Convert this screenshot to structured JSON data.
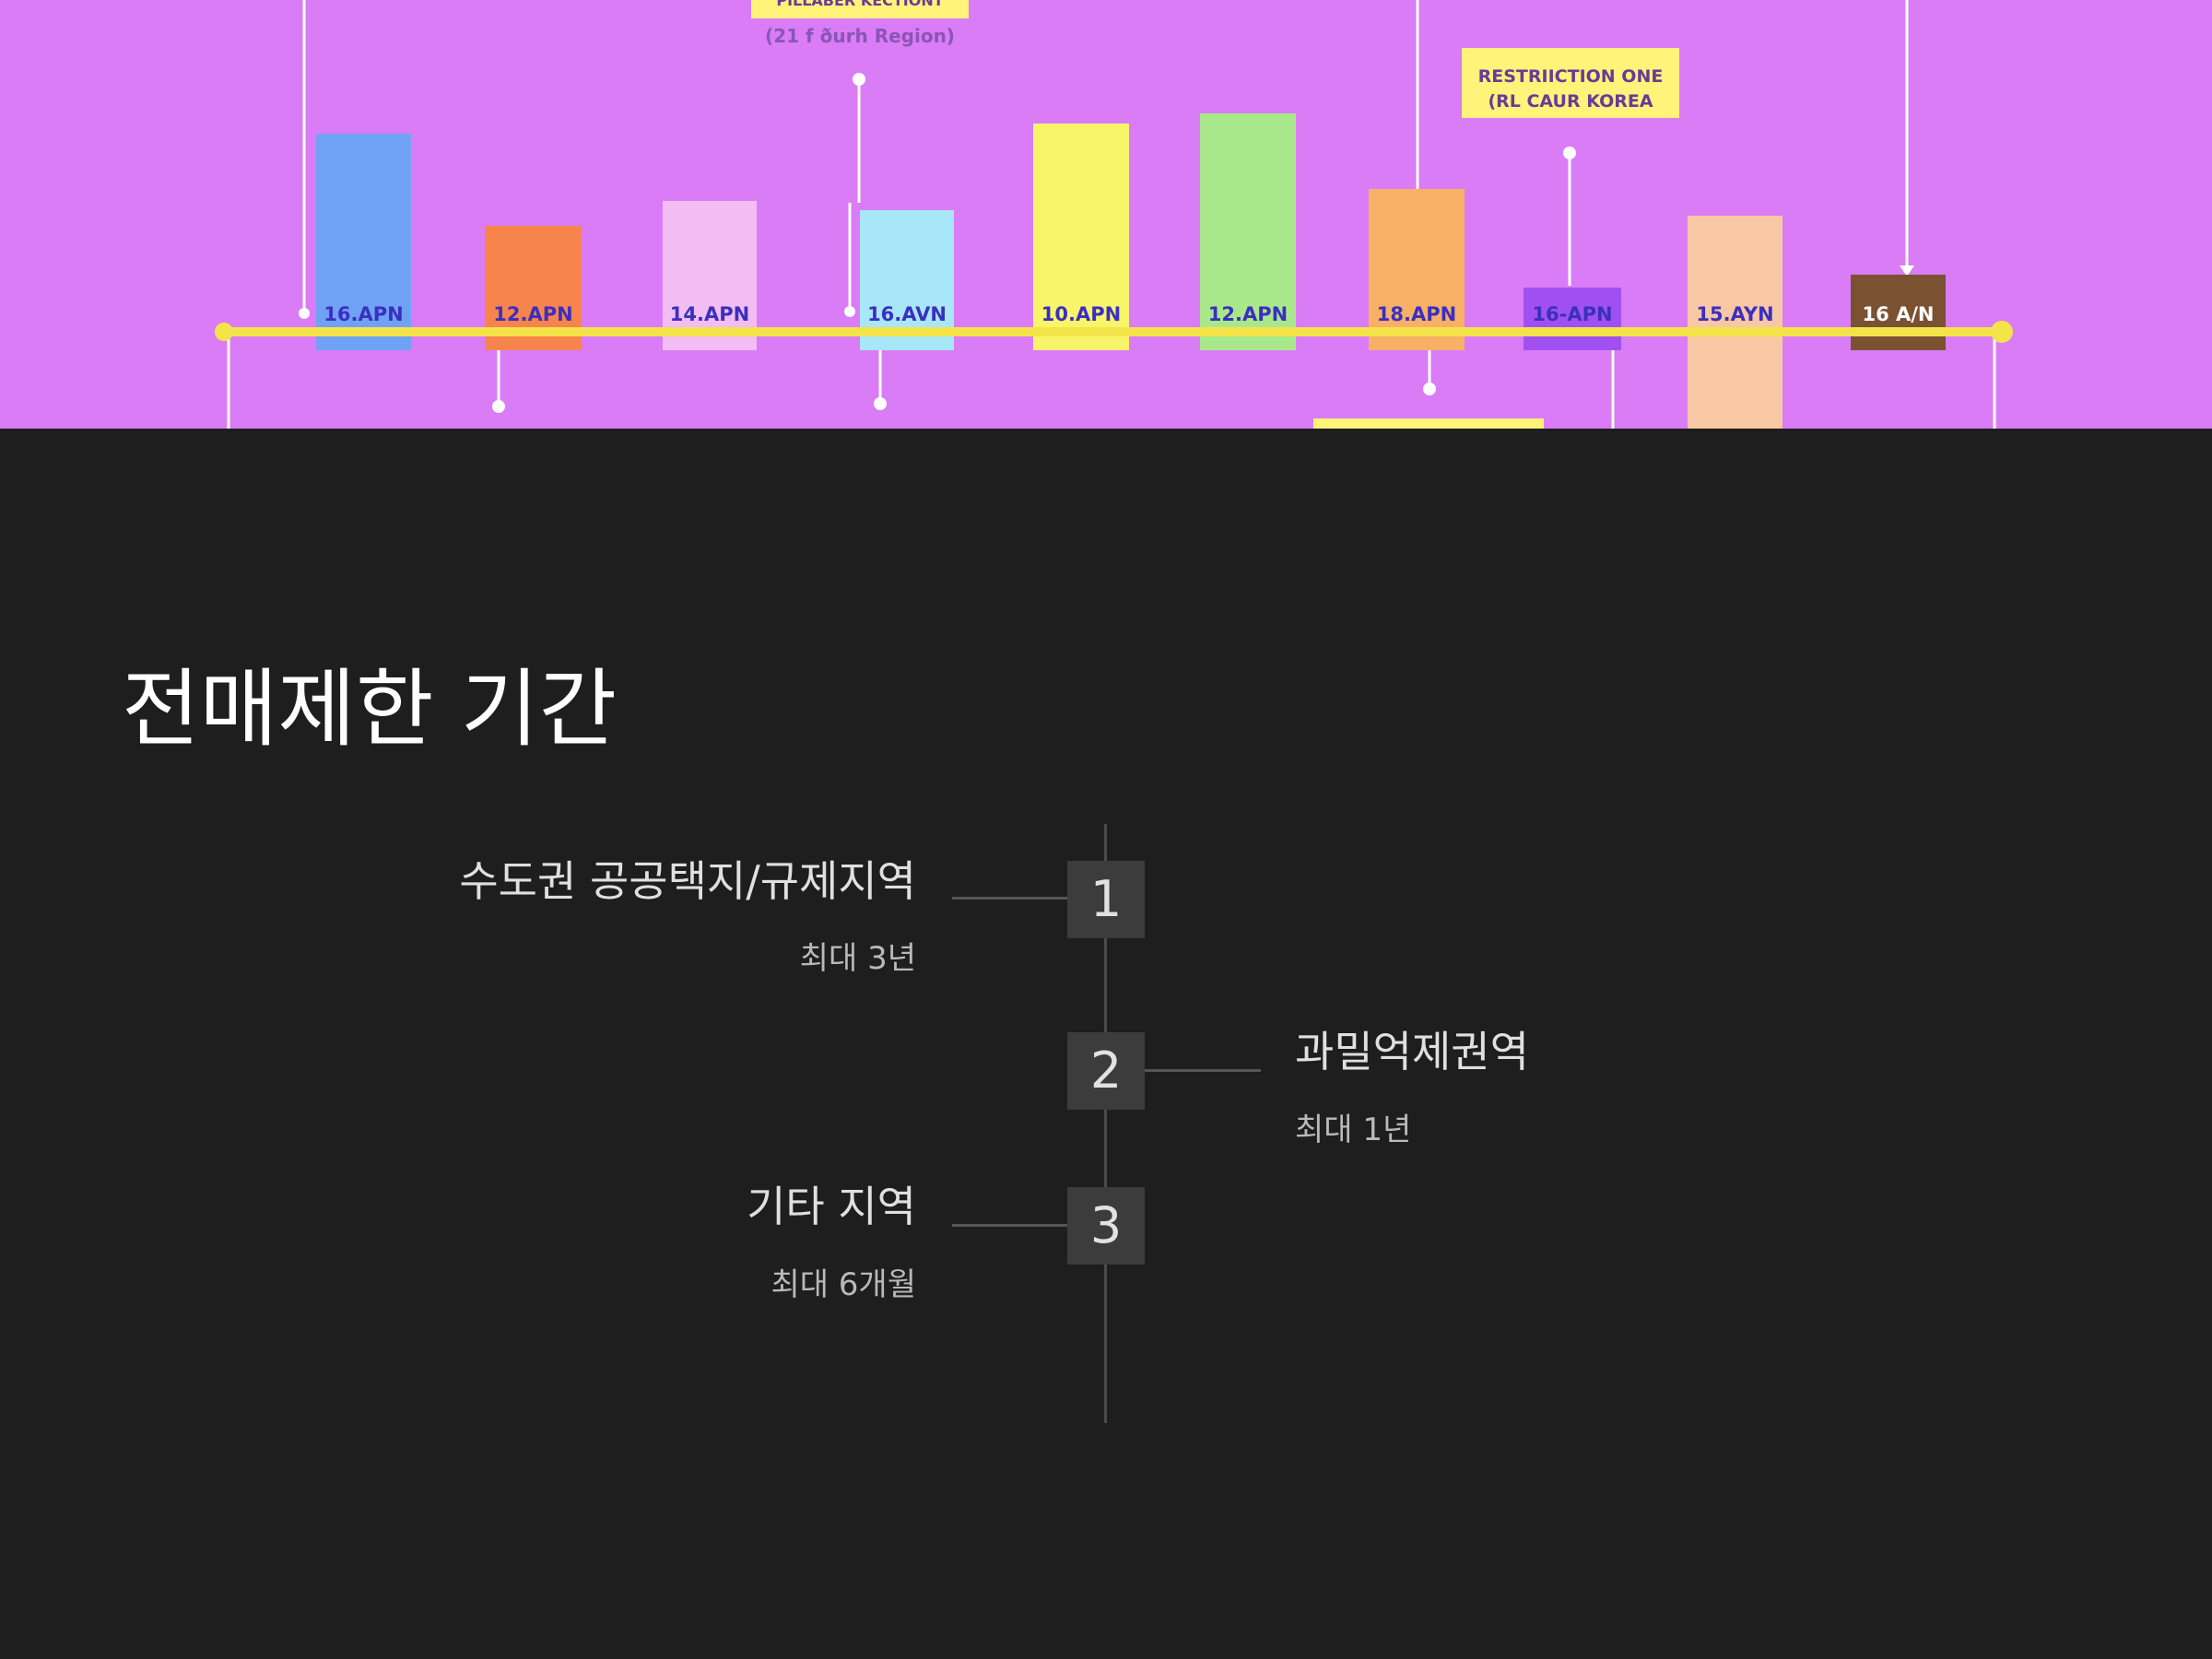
{
  "hero": {
    "callouts": [
      "PILLABER KECTIONT",
      "(21 f ðurh Region)",
      "RESTRIICTION ONE",
      "(RL CAUR KOREA"
    ],
    "bars": [
      {
        "label": "16.APN",
        "color": "#6fa2f5"
      },
      {
        "label": "12.APN",
        "color": "#f7844c"
      },
      {
        "label": "14.APN",
        "color": "#f2bdf2"
      },
      {
        "label": "16.AVN",
        "color": "#a8e7f7"
      },
      {
        "label": "10.APN",
        "color": "#f8f56a"
      },
      {
        "label": "12.APN",
        "color": "#a9e88a"
      },
      {
        "label": "18.APN",
        "color": "#f8b067"
      },
      {
        "label": "16-APN",
        "color": "#a050f0"
      },
      {
        "label": "15.AYN",
        "color": "#f8c8a5"
      },
      {
        "label": "16 A/N",
        "color": "#7a5232"
      }
    ]
  },
  "title": "전매제한 기간",
  "timeline": [
    {
      "number": "1",
      "label": "수도권 공공택지/규제지역",
      "sub": "최대 3년"
    },
    {
      "number": "2",
      "label": "과밀억제권역",
      "sub": "최대 1년"
    },
    {
      "number": "3",
      "label": "기타 지역",
      "sub": "최대 6개월"
    }
  ]
}
